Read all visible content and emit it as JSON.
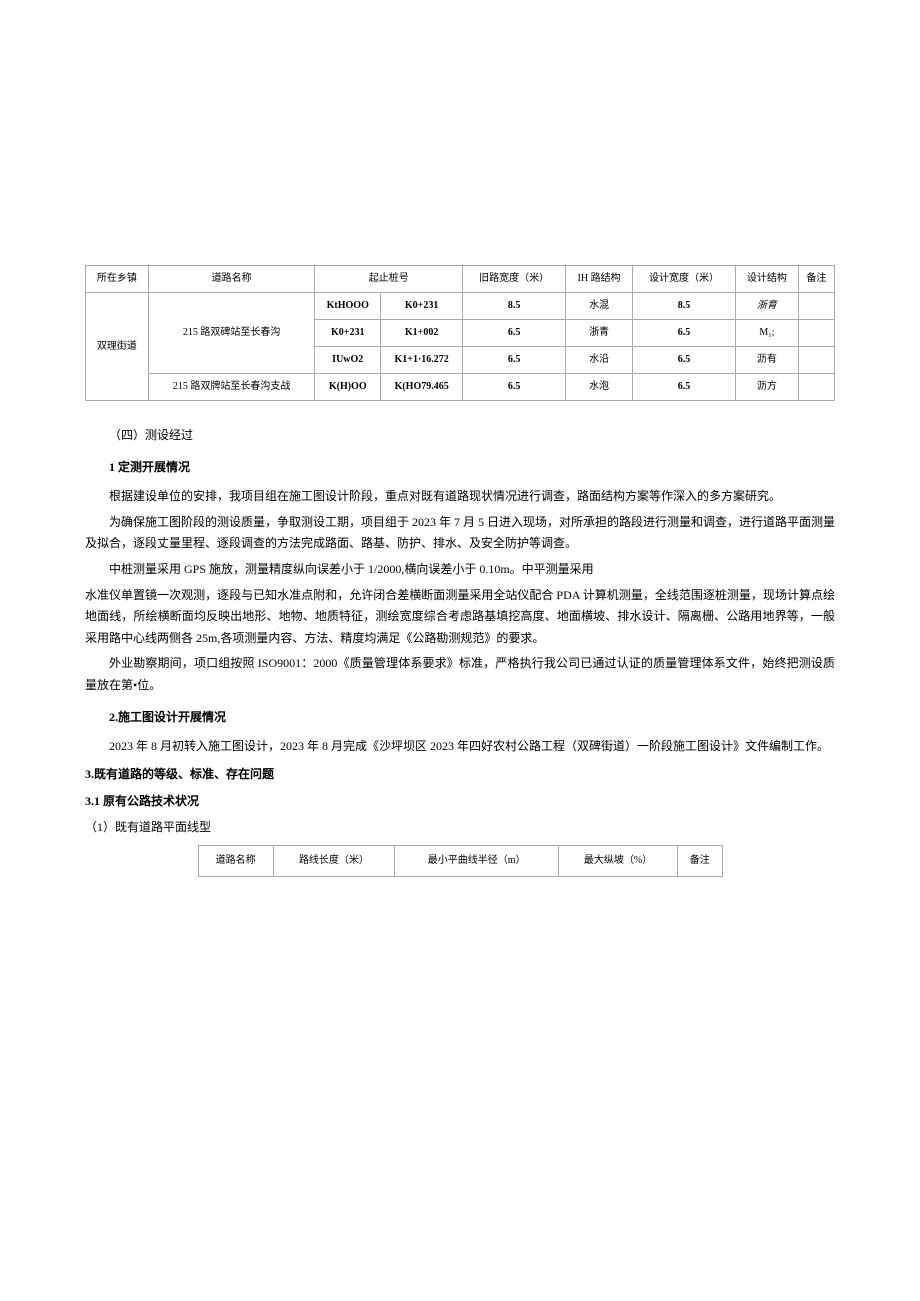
{
  "table1": {
    "headers": [
      "所在乡镇",
      "道路名称",
      "起止桩号",
      "旧路宽度（米）",
      "IH 路结构",
      "设计宽度（米）",
      "设计结构",
      "备注"
    ],
    "township": "双理街道",
    "rows": [
      {
        "road": "215 路双碑站至长春沟",
        "from": "KtHOOO",
        "to": "K0+231",
        "old_w": "8.5",
        "old_s": "水混",
        "des_w": "8.5",
        "des_s": "浙育",
        "note": ""
      },
      {
        "road": "",
        "from": "K0+231",
        "to": "K1+002",
        "old_w": "6.5",
        "old_s": "浙青",
        "des_w": "6.5",
        "des_s": "M₁;",
        "note": ""
      },
      {
        "road": "",
        "from": "IUwO2",
        "to": "K1+1·16.272",
        "old_w": "6.5",
        "old_s": "水沿",
        "des_w": "6.5",
        "des_s": "沥有",
        "note": ""
      },
      {
        "road": "215 路双牌站至长春沟支战",
        "from": "K(H)OO",
        "to": "K(HO79.465",
        "old_w": "6.5",
        "old_s": "水泡",
        "des_w": "6.5",
        "des_s": "沥方",
        "note": ""
      }
    ]
  },
  "s4_title": "（四）测设经过",
  "s4_1_title": "1 定测开展情况",
  "p1": "根据建设单位的安排，我项目组在施工图设计阶段，重点对既有道路现状情况进行调查，路面结构方案等作深入的多方案研究。",
  "p2": "为确保施工图阶段的测设质量，争取测设工期，项目组于 2023 年 7 月 5 日进入现场，对所承担的路段进行测量和调查，进行道路平面测量及拟合，逐段丈量里程、逐段调查的方法完成路面、路基、防护、排水、及安全防护等调查。",
  "p3": "中桩测量采用 GPS 施放，测量精度纵向误差小于 1/2000,横向误差小于 0.10m。中平测量采用",
  "p3b": "水准仪单置镜一次观测，逐段与已知水准点附和，允许闭合差横断面测量采用全站仪配合 PDA 计算机测量，全线范围逐桩测量，现场计算点绘地面线，所绘横断面均反映出地形、地物、地质特征，测绘宽度综合考虑路基填挖高度、地面横坡、排水设计、隔离栅、公路用地界等，一般采用路中心线两侧各 25m,各项测量内容、方法、精度均满足《公路勘测规范》的要求。",
  "p4": "外业勘察期间，项口组按照 ISO9001：2000《质量管理体系要求》标准，严格执行我公司已通过认证的质量管理体系文件，始终把测设质量放在第•位。",
  "s4_2_title": "2.施工图设计开展情况",
  "p5": "2023 年 8 月初转入施工图设计，2023 年 8 月完成《沙坪坝区 2023 年四好农村公路工程（双碑街道）一阶段施工图设计》文件编制工作。",
  "s3_title": "3.既有道路的等级、标准、存在问题",
  "s3_1_title": "3.1 原有公路技术状况",
  "s3_1_1": "（1）既有道路平面线型",
  "table2": {
    "headers": [
      "道路名称",
      "路线长度（米）",
      "最小平曲线半径（m）",
      "最大纵坡（%）",
      "备注"
    ]
  }
}
